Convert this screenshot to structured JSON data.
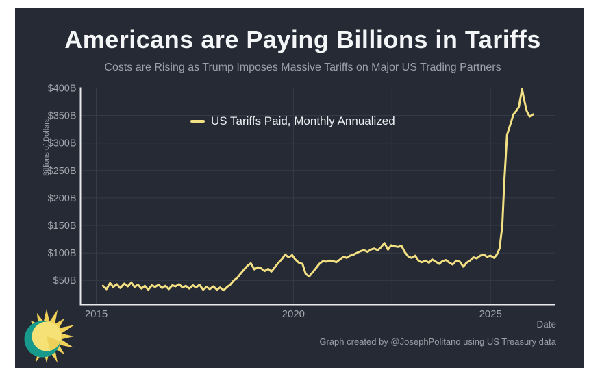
{
  "page": {
    "title": "Americans are Paying Billions in Tariffs",
    "subtitle": "Costs are Rising as Trump Imposes Massive Tariffs on Major US Trading Partners",
    "attribution": "Graph created by @JosephPolitano using US Treasury data"
  },
  "legend": {
    "series_label": "US Tariffs Paid, Monthly Annualized"
  },
  "axes": {
    "y_title": "Billions of Dollars",
    "x_title": "Date"
  },
  "colors": {
    "card_bg": "#252a35",
    "line": "#f2e083",
    "grid": "#363d48",
    "axis": "#e8e9ec",
    "tick_text": "#a2a7ae",
    "logo_teal": "#17998b",
    "logo_ray": "#f0d158",
    "logo_sun": "#f5e175",
    "logo_sun_shade": "#ecd058"
  },
  "chart_data": {
    "type": "line",
    "title": "Americans are Paying Billions in Tariffs",
    "subtitle": "Costs are Rising as Trump Imposes Massive Tariffs on Major US Trading Partners",
    "xlabel": "Date",
    "ylabel": "Billions of Dollars",
    "xlim": [
      2014.6,
      2026.63
    ],
    "ylim": [
      6,
      400
    ],
    "grid": true,
    "legend_position": "inside-top-left",
    "xticks": [
      {
        "value": 2015,
        "label": "2015"
      },
      {
        "value": 2020,
        "label": "2020"
      },
      {
        "value": 2025,
        "label": "2025"
      }
    ],
    "x_gridlines": [
      2015,
      2017.5,
      2020,
      2022.5,
      2025
    ],
    "yticks": [
      {
        "value": 50,
        "label": "$50B"
      },
      {
        "value": 100,
        "label": "$100B"
      },
      {
        "value": 150,
        "label": "$150B"
      },
      {
        "value": 200,
        "label": "$200B"
      },
      {
        "value": 250,
        "label": "$250B"
      },
      {
        "value": 300,
        "label": "$300B"
      },
      {
        "value": 350,
        "label": "$350B"
      },
      {
        "value": 400,
        "label": "$400B"
      }
    ],
    "series": [
      {
        "name": "US Tariffs Paid, Monthly Annualized",
        "units": "billions of US dollars, annualized",
        "points": [
          [
            2015.17,
            40
          ],
          [
            2015.26,
            34
          ],
          [
            2015.35,
            45
          ],
          [
            2015.43,
            38
          ],
          [
            2015.52,
            43
          ],
          [
            2015.61,
            36
          ],
          [
            2015.71,
            44
          ],
          [
            2015.8,
            39
          ],
          [
            2015.89,
            46
          ],
          [
            2015.97,
            38
          ],
          [
            2016.06,
            42
          ],
          [
            2016.15,
            35
          ],
          [
            2016.23,
            40
          ],
          [
            2016.32,
            33
          ],
          [
            2016.41,
            41
          ],
          [
            2016.49,
            38
          ],
          [
            2016.58,
            42
          ],
          [
            2016.67,
            36
          ],
          [
            2016.75,
            40
          ],
          [
            2016.84,
            34
          ],
          [
            2016.93,
            41
          ],
          [
            2017.01,
            39
          ],
          [
            2017.1,
            43
          ],
          [
            2017.19,
            37
          ],
          [
            2017.27,
            40
          ],
          [
            2017.36,
            35
          ],
          [
            2017.45,
            41
          ],
          [
            2017.53,
            37
          ],
          [
            2017.62,
            42
          ],
          [
            2017.71,
            33
          ],
          [
            2017.8,
            38
          ],
          [
            2017.88,
            34
          ],
          [
            2017.97,
            39
          ],
          [
            2018.06,
            33
          ],
          [
            2018.14,
            37
          ],
          [
            2018.23,
            32
          ],
          [
            2018.32,
            38
          ],
          [
            2018.4,
            42
          ],
          [
            2018.49,
            50
          ],
          [
            2018.58,
            55
          ],
          [
            2018.66,
            62
          ],
          [
            2018.75,
            70
          ],
          [
            2018.84,
            77
          ],
          [
            2018.92,
            81
          ],
          [
            2019.01,
            70
          ],
          [
            2019.1,
            74
          ],
          [
            2019.18,
            72
          ],
          [
            2019.27,
            67
          ],
          [
            2019.36,
            71
          ],
          [
            2019.44,
            66
          ],
          [
            2019.53,
            74
          ],
          [
            2019.62,
            82
          ],
          [
            2019.7,
            88
          ],
          [
            2019.79,
            97
          ],
          [
            2019.88,
            92
          ],
          [
            2019.97,
            96
          ],
          [
            2020.05,
            88
          ],
          [
            2020.14,
            82
          ],
          [
            2020.23,
            80
          ],
          [
            2020.31,
            62
          ],
          [
            2020.4,
            57
          ],
          [
            2020.49,
            65
          ],
          [
            2020.57,
            72
          ],
          [
            2020.66,
            80
          ],
          [
            2020.75,
            85
          ],
          [
            2020.83,
            84
          ],
          [
            2020.92,
            86
          ],
          [
            2021.01,
            85
          ],
          [
            2021.09,
            83
          ],
          [
            2021.18,
            88
          ],
          [
            2021.27,
            93
          ],
          [
            2021.35,
            91
          ],
          [
            2021.44,
            95
          ],
          [
            2021.53,
            97
          ],
          [
            2021.61,
            100
          ],
          [
            2021.7,
            103
          ],
          [
            2021.79,
            105
          ],
          [
            2021.88,
            102
          ],
          [
            2021.96,
            106
          ],
          [
            2022.05,
            108
          ],
          [
            2022.14,
            105
          ],
          [
            2022.22,
            110
          ],
          [
            2022.31,
            118
          ],
          [
            2022.4,
            106
          ],
          [
            2022.48,
            114
          ],
          [
            2022.57,
            112
          ],
          [
            2022.66,
            111
          ],
          [
            2022.74,
            113
          ],
          [
            2022.83,
            101
          ],
          [
            2022.92,
            93
          ],
          [
            2023.0,
            91
          ],
          [
            2023.09,
            95
          ],
          [
            2023.18,
            85
          ],
          [
            2023.26,
            83
          ],
          [
            2023.35,
            86
          ],
          [
            2023.44,
            82
          ],
          [
            2023.52,
            88
          ],
          [
            2023.61,
            84
          ],
          [
            2023.7,
            80
          ],
          [
            2023.78,
            85
          ],
          [
            2023.87,
            87
          ],
          [
            2023.96,
            82
          ],
          [
            2024.04,
            79
          ],
          [
            2024.13,
            86
          ],
          [
            2024.22,
            84
          ],
          [
            2024.31,
            75
          ],
          [
            2024.39,
            82
          ],
          [
            2024.48,
            86
          ],
          [
            2024.57,
            92
          ],
          [
            2024.65,
            90
          ],
          [
            2024.74,
            95
          ],
          [
            2024.83,
            97
          ],
          [
            2024.91,
            93
          ],
          [
            2025.0,
            95
          ],
          [
            2025.09,
            91
          ],
          [
            2025.16,
            97
          ],
          [
            2025.23,
            108
          ],
          [
            2025.3,
            150
          ],
          [
            2025.35,
            230
          ],
          [
            2025.42,
            315
          ],
          [
            2025.51,
            335
          ],
          [
            2025.58,
            352
          ],
          [
            2025.65,
            358
          ],
          [
            2025.72,
            366
          ],
          [
            2025.8,
            398
          ],
          [
            2025.86,
            376
          ],
          [
            2025.92,
            358
          ],
          [
            2025.99,
            348
          ],
          [
            2026.08,
            352
          ]
        ]
      }
    ]
  }
}
